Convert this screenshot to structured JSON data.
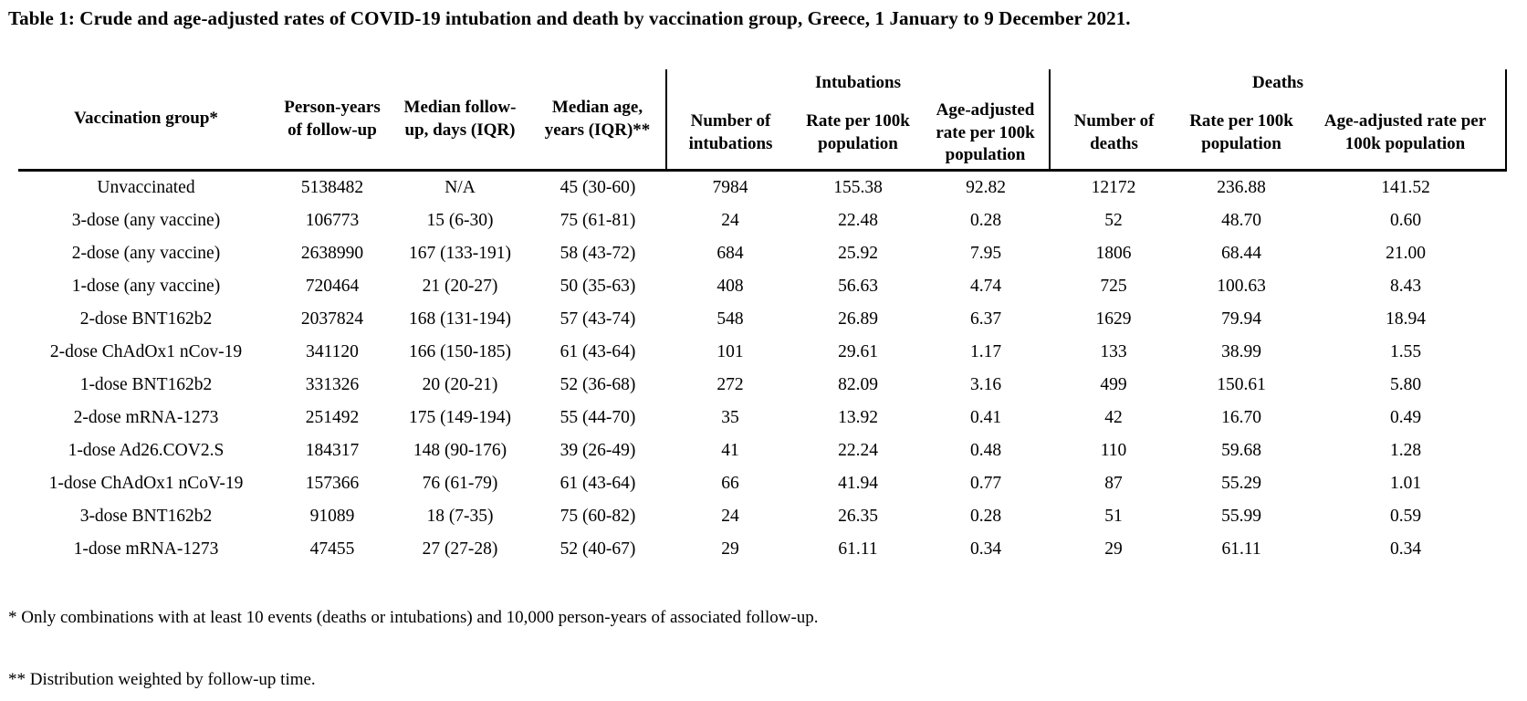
{
  "title": "Table 1: Crude and age-adjusted rates of COVID-19 intubation and death by vaccination group, Greece, 1 January to 9 December 2021.",
  "table": {
    "column_headers": [
      "Vaccination group*",
      "Person-years of follow-up",
      "Median follow-up, days (IQR)",
      "Median age, years (IQR)**"
    ],
    "group_headers": [
      {
        "label": "Intubations",
        "columns": [
          "Number of intubations",
          "Rate per 100k population",
          "Age-adjusted rate per 100k population"
        ]
      },
      {
        "label": "Deaths",
        "columns": [
          "Number of deaths",
          "Rate per 100k population",
          "Age-adjusted rate per 100k population"
        ]
      }
    ],
    "rows": [
      [
        "Unvaccinated",
        "5138482",
        "N/A",
        "45 (30-60)",
        "7984",
        "155.38",
        "92.82",
        "12172",
        "236.88",
        "141.52"
      ],
      [
        "3-dose (any vaccine)",
        "106773",
        "15 (6-30)",
        "75 (61-81)",
        "24",
        "22.48",
        "0.28",
        "52",
        "48.70",
        "0.60"
      ],
      [
        "2-dose (any vaccine)",
        "2638990",
        "167 (133-191)",
        "58 (43-72)",
        "684",
        "25.92",
        "7.95",
        "1806",
        "68.44",
        "21.00"
      ],
      [
        "1-dose (any vaccine)",
        "720464",
        "21 (20-27)",
        "50 (35-63)",
        "408",
        "56.63",
        "4.74",
        "725",
        "100.63",
        "8.43"
      ],
      [
        "2-dose BNT162b2",
        "2037824",
        "168 (131-194)",
        "57 (43-74)",
        "548",
        "26.89",
        "6.37",
        "1629",
        "79.94",
        "18.94"
      ],
      [
        "2-dose ChAdOx1 nCov-19",
        "341120",
        "166 (150-185)",
        "61 (43-64)",
        "101",
        "29.61",
        "1.17",
        "133",
        "38.99",
        "1.55"
      ],
      [
        "1-dose BNT162b2",
        "331326",
        "20 (20-21)",
        "52 (36-68)",
        "272",
        "82.09",
        "3.16",
        "499",
        "150.61",
        "5.80"
      ],
      [
        "2-dose mRNA-1273",
        "251492",
        "175 (149-194)",
        "55 (44-70)",
        "35",
        "13.92",
        "0.41",
        "42",
        "16.70",
        "0.49"
      ],
      [
        "1-dose Ad26.COV2.S",
        "184317",
        "148 (90-176)",
        "39 (26-49)",
        "41",
        "22.24",
        "0.48",
        "110",
        "59.68",
        "1.28"
      ],
      [
        "1-dose ChAdOx1 nCoV-19",
        "157366",
        "76 (61-79)",
        "61 (43-64)",
        "66",
        "41.94",
        "0.77",
        "87",
        "55.29",
        "1.01"
      ],
      [
        "3-dose BNT162b2",
        "91089",
        "18 (7-35)",
        "75 (60-82)",
        "24",
        "26.35",
        "0.28",
        "51",
        "55.99",
        "0.59"
      ],
      [
        "1-dose mRNA-1273",
        "47455",
        "27 (27-28)",
        "52 (40-67)",
        "29",
        "61.11",
        "0.34",
        "29",
        "61.11",
        "0.34"
      ]
    ]
  },
  "footnotes": [
    "* Only combinations with at least 10 events (deaths or intubations) and 10,000 person-years of associated follow-up.",
    "** Distribution weighted by follow-up time."
  ]
}
